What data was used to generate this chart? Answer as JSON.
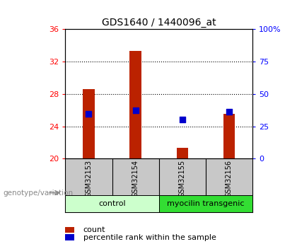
{
  "title": "GDS1640 / 1440096_at",
  "samples": [
    "GSM32153",
    "GSM32154",
    "GSM32155",
    "GSM32156"
  ],
  "count_values": [
    28.6,
    33.3,
    21.3,
    25.5
  ],
  "percentile_values": [
    25.5,
    26.0,
    24.8,
    25.8
  ],
  "ylim": [
    20,
    36
  ],
  "yticks": [
    20,
    24,
    28,
    32,
    36
  ],
  "y2lim": [
    0,
    100
  ],
  "y2ticks": [
    0,
    25,
    50,
    75,
    100
  ],
  "y2ticklabels": [
    "0",
    "25",
    "50",
    "75",
    "100%"
  ],
  "bar_color": "#bb2200",
  "dot_color": "#0000cc",
  "group0_label": "control",
  "group0_color": "#ccffcc",
  "group0_range": [
    0,
    2
  ],
  "group1_label": "myocilin transgenic",
  "group1_color": "#33dd33",
  "group1_range": [
    2,
    4
  ],
  "legend_count_label": "count",
  "legend_percentile_label": "percentile rank within the sample",
  "genotype_label": "genotype/variation",
  "plot_bg": "#ffffff",
  "label_area_bg": "#c8c8c8",
  "grid_yticks": [
    24,
    28,
    32
  ]
}
